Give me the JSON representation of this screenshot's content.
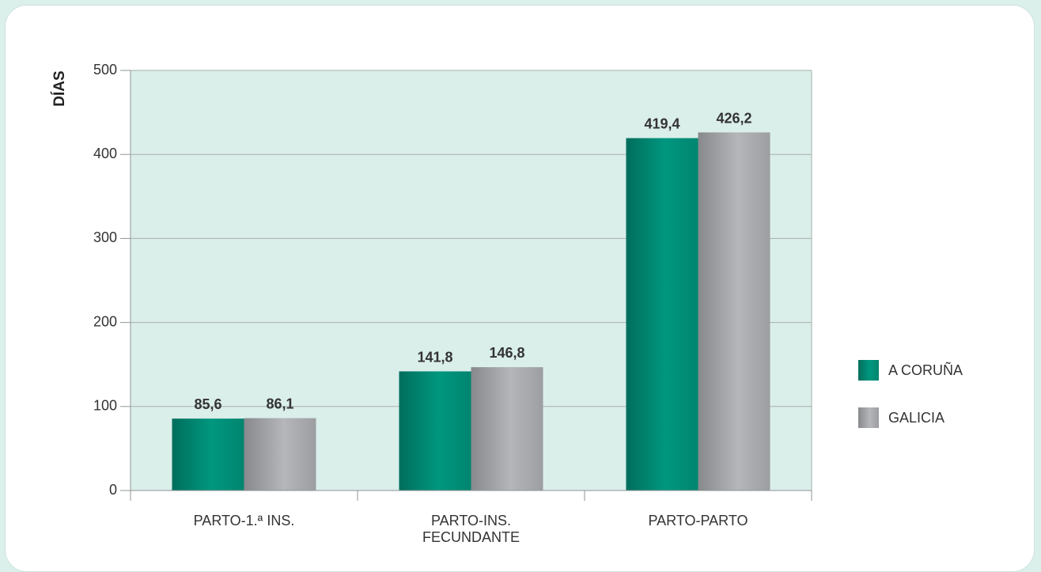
{
  "chart_data": {
    "type": "bar",
    "ylabel": "DÍAS",
    "ylim": [
      0,
      500
    ],
    "yticks": [
      0,
      100,
      200,
      300,
      400,
      500
    ],
    "categories": [
      [
        "PARTO-1.ª INS."
      ],
      [
        "PARTO-INS.",
        "FECUNDANTE"
      ],
      [
        "PARTO-PARTO"
      ]
    ],
    "series": [
      {
        "name": "A CORUÑA",
        "color": "#00927c",
        "values": [
          85.6,
          141.8,
          419.4
        ],
        "labels": [
          "85,6",
          "141,8",
          "419,4"
        ]
      },
      {
        "name": "GALICIA",
        "color": "#a3a5a8",
        "values": [
          86.1,
          146.8,
          426.2
        ],
        "labels": [
          "86,1",
          "146,8",
          "426,2"
        ]
      }
    ],
    "grid": true,
    "legend": "right",
    "plot_background": "#daeeea"
  }
}
